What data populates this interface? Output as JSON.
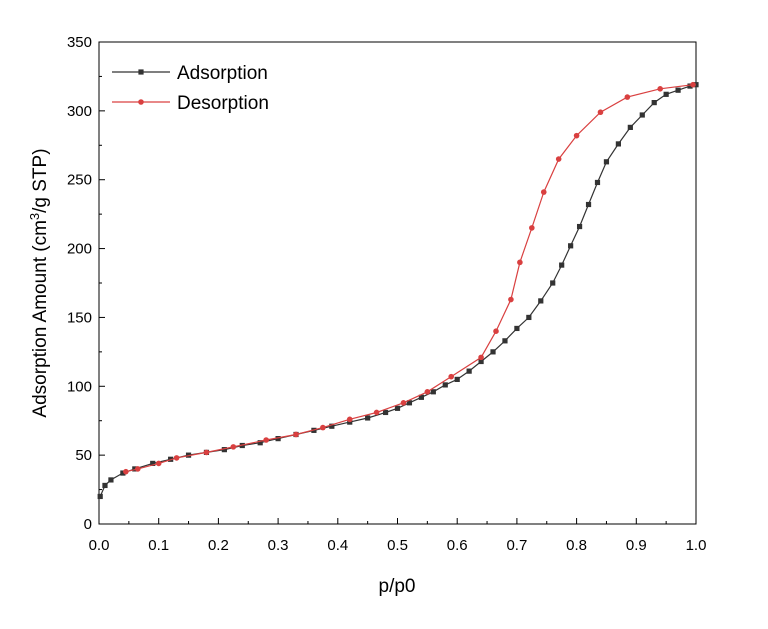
{
  "chart_data": {
    "type": "line",
    "title": "",
    "xlabel": "p/p0",
    "ylabel": "Adsorption Amount (cm",
    "ylabel_sup": "3",
    "ylabel_tail": "/g STP)",
    "xlim": [
      0.0,
      1.0
    ],
    "ylim": [
      0,
      350
    ],
    "xticks": [
      "0.0",
      "0.1",
      "0.2",
      "0.3",
      "0.4",
      "0.5",
      "0.6",
      "0.7",
      "0.8",
      "0.9",
      "1.0"
    ],
    "yticks": [
      "0",
      "50",
      "100",
      "150",
      "200",
      "250",
      "300",
      "350"
    ],
    "legend_position": "top-left",
    "series": [
      {
        "name": "Adsorption",
        "color": "#333333",
        "marker": "square",
        "x": [
          0.002,
          0.01,
          0.02,
          0.04,
          0.06,
          0.09,
          0.12,
          0.15,
          0.18,
          0.21,
          0.24,
          0.27,
          0.3,
          0.33,
          0.36,
          0.39,
          0.42,
          0.45,
          0.48,
          0.5,
          0.52,
          0.54,
          0.56,
          0.58,
          0.6,
          0.62,
          0.64,
          0.66,
          0.68,
          0.7,
          0.72,
          0.74,
          0.76,
          0.775,
          0.79,
          0.805,
          0.82,
          0.835,
          0.85,
          0.87,
          0.89,
          0.91,
          0.93,
          0.95,
          0.97,
          0.99,
          1.0
        ],
        "y": [
          20,
          28,
          32,
          37,
          40,
          44,
          47,
          50,
          52,
          54,
          57,
          59,
          62,
          65,
          68,
          71,
          74,
          77,
          81,
          84,
          88,
          92,
          96,
          101,
          105,
          111,
          118,
          125,
          133,
          142,
          150,
          162,
          175,
          188,
          202,
          216,
          232,
          248,
          263,
          276,
          288,
          297,
          306,
          312,
          315,
          318,
          319
        ]
      },
      {
        "name": "Desorption",
        "color": "#d94040",
        "marker": "circle",
        "x": [
          0.045,
          0.065,
          0.1,
          0.13,
          0.18,
          0.225,
          0.28,
          0.33,
          0.375,
          0.42,
          0.465,
          0.51,
          0.55,
          0.59,
          0.64,
          0.665,
          0.69,
          0.705,
          0.725,
          0.745,
          0.77,
          0.8,
          0.84,
          0.885,
          0.94,
          0.995
        ],
        "y": [
          38,
          40,
          44,
          48,
          52,
          56,
          61,
          65,
          70,
          76,
          81,
          88,
          96,
          107,
          121,
          140,
          163,
          190,
          215,
          241,
          265,
          282,
          299,
          310,
          316,
          319
        ]
      }
    ]
  }
}
